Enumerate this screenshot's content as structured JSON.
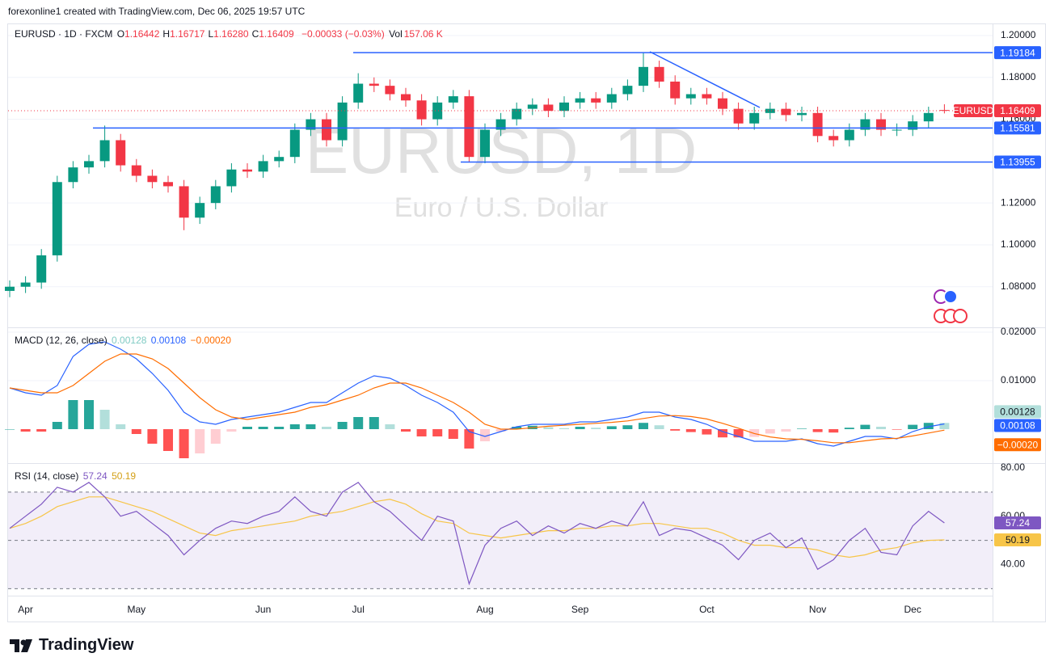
{
  "header": {
    "caption": "forexonline1 created with TradingView.com, Dec 06, 2025 19:57 UTC",
    "brand": "TradingView"
  },
  "legend": {
    "symbol_line": "EURUSD · 1D · FXCM",
    "ohlc": [
      {
        "key": "O",
        "text": "1.16442"
      },
      {
        "key": "H",
        "text": "1.16717"
      },
      {
        "key": "L",
        "text": "1.16280"
      },
      {
        "key": "C",
        "text": "1.16409"
      }
    ],
    "change": "−0.00033 (−0.03%)",
    "volume": {
      "key": "Vol",
      "text": "157.06 K"
    }
  },
  "watermark": {
    "title": "EURUSD, 1D",
    "subtitle": "Euro / U.S. Dollar"
  },
  "chart_data": [
    {
      "type": "candlestick",
      "symbol": "EURUSD",
      "categories": [
        null,
        "Apr",
        null,
        null,
        null,
        null,
        null,
        null,
        "May",
        null,
        null,
        null,
        null,
        null,
        null,
        null,
        "Jun",
        null,
        null,
        null,
        null,
        null,
        "Jul",
        null,
        null,
        null,
        null,
        null,
        null,
        null,
        "Aug",
        null,
        null,
        null,
        null,
        null,
        "Sep",
        null,
        null,
        null,
        null,
        null,
        null,
        null,
        "Oct",
        null,
        null,
        null,
        null,
        null,
        null,
        "Nov",
        null,
        null,
        null,
        null,
        null,
        "Dec",
        null,
        null
      ],
      "open": [
        1.078,
        1.08,
        1.082,
        1.095,
        1.13,
        1.137,
        1.14,
        1.15,
        1.138,
        1.133,
        1.13,
        1.128,
        1.113,
        1.12,
        1.128,
        1.136,
        1.135,
        1.14,
        1.142,
        1.155,
        1.16,
        1.15,
        1.168,
        1.177,
        1.176,
        1.172,
        1.169,
        1.16,
        1.168,
        1.171,
        1.142,
        1.155,
        1.16,
        1.165,
        1.167,
        1.164,
        1.168,
        1.17,
        1.168,
        1.172,
        1.176,
        1.185,
        1.178,
        1.17,
        1.172,
        1.17,
        1.165,
        1.158,
        1.163,
        1.165,
        1.162,
        1.163,
        1.152,
        1.15,
        1.155,
        1.16,
        1.155,
        1.155,
        1.159,
        1.16442
      ],
      "high": [
        1.083,
        1.085,
        1.098,
        1.133,
        1.14,
        1.143,
        1.157,
        1.153,
        1.141,
        1.136,
        1.133,
        1.131,
        1.123,
        1.131,
        1.139,
        1.139,
        1.143,
        1.145,
        1.158,
        1.163,
        1.163,
        1.171,
        1.182,
        1.18,
        1.179,
        1.175,
        1.172,
        1.171,
        1.174,
        1.174,
        1.158,
        1.163,
        1.168,
        1.17,
        1.17,
        1.171,
        1.173,
        1.173,
        1.175,
        1.179,
        1.1918,
        1.188,
        1.181,
        1.175,
        1.175,
        1.173,
        1.168,
        1.166,
        1.168,
        1.168,
        1.166,
        1.166,
        1.155,
        1.158,
        1.163,
        1.163,
        1.158,
        1.162,
        1.166,
        1.16717
      ],
      "low": [
        1.075,
        1.077,
        1.079,
        1.092,
        1.127,
        1.134,
        1.137,
        1.135,
        1.13,
        1.127,
        1.125,
        1.107,
        1.11,
        1.117,
        1.125,
        1.132,
        1.132,
        1.137,
        1.139,
        1.152,
        1.147,
        1.147,
        1.165,
        1.173,
        1.169,
        1.166,
        1.157,
        1.157,
        1.165,
        1.1395,
        1.139,
        1.152,
        1.157,
        1.162,
        1.161,
        1.161,
        1.165,
        1.165,
        1.165,
        1.169,
        1.173,
        1.175,
        1.167,
        1.167,
        1.167,
        1.162,
        1.155,
        1.155,
        1.16,
        1.159,
        1.159,
        1.149,
        1.147,
        1.147,
        1.152,
        1.152,
        1.152,
        1.152,
        1.156,
        1.1628
      ],
      "close": [
        1.08,
        1.082,
        1.095,
        1.13,
        1.137,
        1.14,
        1.15,
        1.138,
        1.133,
        1.13,
        1.128,
        1.113,
        1.12,
        1.128,
        1.136,
        1.135,
        1.14,
        1.142,
        1.155,
        1.16,
        1.15,
        1.168,
        1.177,
        1.176,
        1.172,
        1.169,
        1.16,
        1.168,
        1.171,
        1.142,
        1.155,
        1.16,
        1.165,
        1.167,
        1.164,
        1.168,
        1.17,
        1.168,
        1.172,
        1.176,
        1.185,
        1.178,
        1.17,
        1.172,
        1.17,
        1.165,
        1.158,
        1.163,
        1.165,
        1.162,
        1.163,
        1.152,
        1.15,
        1.155,
        1.16,
        1.155,
        1.155,
        1.159,
        1.163,
        1.16409
      ],
      "up_color": "#089981",
      "down_color": "#f23645",
      "level_color": "#2962ff",
      "ylim": [
        1.0606,
        1.2054
      ],
      "yticks": [
        {
          "value": 1.08,
          "label": "1.08000"
        },
        {
          "value": 1.1,
          "label": "1.10000"
        },
        {
          "value": 1.12,
          "label": "1.12000"
        },
        {
          "value": 1.16,
          "label": "1.16000"
        },
        {
          "value": 1.18,
          "label": "1.18000"
        },
        {
          "value": 1.2,
          "label": "1.20000"
        }
      ],
      "levels": [
        1.19184,
        1.15581,
        1.13955
      ],
      "grid": true
    },
    {
      "type": "macd",
      "title": "MACD (12, 26, close)",
      "series": [
        {
          "style": "histogram",
          "colors": [
            "#26a69a",
            "#b2dfdb",
            "#ff5252",
            "#ffcdd2"
          ],
          "last_label": "0.00128",
          "values": [
            0,
            -0.0005,
            -0.0005,
            0.0015,
            0.006,
            0.006,
            0.004,
            0.001,
            -0.001,
            -0.003,
            -0.0045,
            -0.006,
            -0.005,
            -0.003,
            -0.0005,
            0.0005,
            0.0005,
            0.0005,
            0.001,
            0.001,
            0.0005,
            0.0015,
            0.0025,
            0.0025,
            0.001,
            -0.0005,
            -0.0015,
            -0.0015,
            -0.002,
            -0.004,
            -0.0025,
            -0.0005,
            0.0005,
            0.0007,
            0.0004,
            0.0002,
            0.0005,
            0.0003,
            0.0006,
            0.0008,
            0.0013,
            0.0008,
            -0.0003,
            -0.0006,
            -0.0011,
            -0.0017,
            -0.0017,
            -0.0016,
            -0.0009,
            -0.0005,
            0.0001,
            -0.0006,
            -0.0007,
            0.0003,
            0.0009,
            0.0005,
            -0.0001,
            0.0009,
            0.0013,
            0.00128
          ]
        },
        {
          "style": "line",
          "color": "#2962ff",
          "last_label": "0.00108",
          "values": [
            0.0085,
            0.0075,
            0.007,
            0.009,
            0.015,
            0.0175,
            0.018,
            0.0165,
            0.0145,
            0.0115,
            0.008,
            0.0035,
            0.0015,
            0.001,
            0.002,
            0.0025,
            0.003,
            0.0035,
            0.0045,
            0.0055,
            0.0055,
            0.0075,
            0.0095,
            0.011,
            0.0105,
            0.009,
            0.007,
            0.0055,
            0.0035,
            -0.0005,
            -0.0015,
            -0.0005,
            0.0005,
            0.001,
            0.001,
            0.001,
            0.0015,
            0.0015,
            0.002,
            0.0025,
            0.0035,
            0.0035,
            0.0025,
            0.002,
            0.001,
            -0.0005,
            -0.0015,
            -0.0025,
            -0.0025,
            -0.0025,
            -0.002,
            -0.003,
            -0.0035,
            -0.0025,
            -0.0015,
            -0.0015,
            -0.002,
            -0.0005,
            0.0005,
            0.00108
          ]
        },
        {
          "style": "line",
          "color": "#ff6d00",
          "last_label": "−0.00020",
          "values": [
            0.0085,
            0.008,
            0.0075,
            0.0075,
            0.009,
            0.0115,
            0.014,
            0.0155,
            0.0155,
            0.0145,
            0.0125,
            0.0095,
            0.0065,
            0.004,
            0.0025,
            0.002,
            0.0025,
            0.003,
            0.0035,
            0.0045,
            0.005,
            0.006,
            0.007,
            0.0085,
            0.0095,
            0.0095,
            0.0085,
            0.007,
            0.0055,
            0.0035,
            0.001,
            0,
            0,
            0.0003,
            0.0006,
            0.0008,
            0.001,
            0.0012,
            0.0014,
            0.0017,
            0.0022,
            0.0027,
            0.0028,
            0.0026,
            0.0021,
            0.0012,
            0.0002,
            -0.0009,
            -0.0016,
            -0.002,
            -0.0021,
            -0.0024,
            -0.0028,
            -0.0028,
            -0.0024,
            -0.002,
            -0.0019,
            -0.0014,
            -0.0008,
            -0.0002
          ]
        }
      ],
      "ylim": [
        -0.007,
        0.021
      ],
      "yticks": [
        {
          "value": 0.01,
          "label": "0.01000"
        },
        {
          "value": 0.02,
          "label": "0.02000"
        }
      ]
    },
    {
      "type": "rsi",
      "title": "RSI (14, close)",
      "series": [
        {
          "color": "#7e57c2",
          "values": [
            55,
            60,
            65,
            72,
            70,
            74,
            68,
            60,
            62,
            57,
            52,
            44,
            50,
            55,
            58,
            57,
            60,
            62,
            68,
            62,
            60,
            70,
            74,
            66,
            62,
            56,
            50,
            60,
            58,
            32,
            48,
            55,
            58,
            52,
            56,
            53,
            57,
            55,
            58,
            56,
            66,
            52,
            55,
            54,
            51,
            48,
            42,
            50,
            53,
            47,
            51,
            38,
            42,
            50,
            55,
            45,
            44,
            56,
            62,
            57.24
          ]
        },
        {
          "color": "#f7c548",
          "values": [
            55,
            57,
            60,
            64,
            66,
            68,
            68,
            66,
            64,
            62,
            59,
            56,
            53,
            52,
            54,
            55,
            56,
            57,
            58,
            60,
            61,
            62,
            64,
            66,
            67,
            65,
            61,
            58,
            57,
            53,
            52,
            51,
            52,
            53,
            54,
            54,
            55,
            55,
            56,
            56,
            57,
            57,
            56,
            55,
            55,
            53,
            50,
            48,
            48,
            47,
            47,
            46,
            44,
            43,
            44,
            46,
            47,
            49,
            50,
            50.19
          ]
        }
      ],
      "ylim": [
        27.1,
        82.0
      ],
      "yticks": [
        {
          "value": 40,
          "label": "40.00"
        },
        {
          "value": 60,
          "label": "60.00"
        },
        {
          "value": 80,
          "label": "80.00"
        }
      ],
      "band": [
        30,
        70
      ],
      "midline": 50
    }
  ]
}
